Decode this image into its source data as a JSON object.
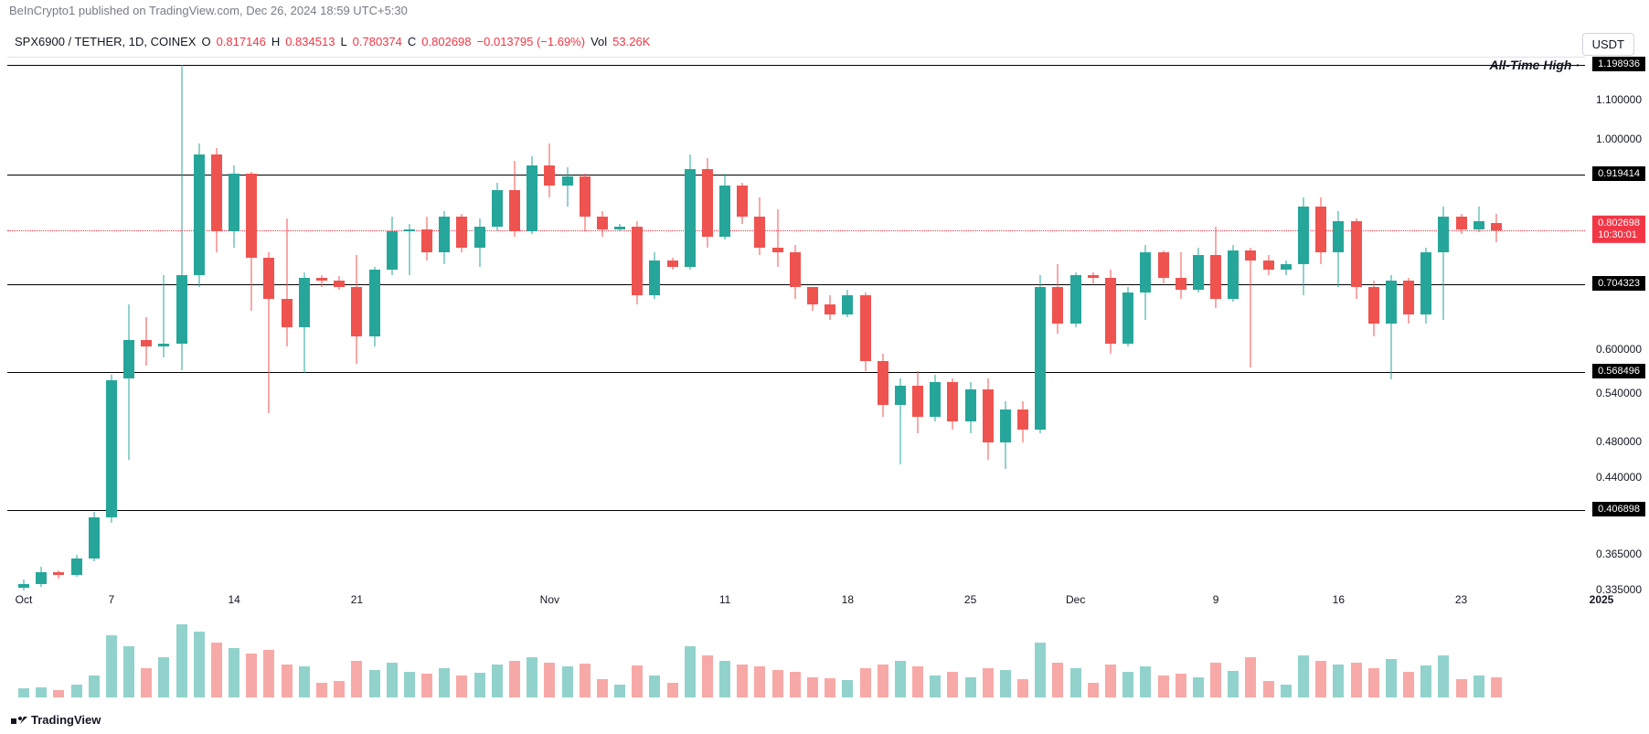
{
  "header": "BeInCrypto1 published on TradingView.com, Dec 26, 2024 18:59 UTC+5:30",
  "legend": {
    "symbol": "SPX6900 / TETHER, 1D, COINEX",
    "o_label": "O",
    "o": "0.817146",
    "h_label": "H",
    "h": "0.834513",
    "l_label": "L",
    "l": "0.780374",
    "c_label": "C",
    "c": "0.802698",
    "chg": "−0.013795 (−1.69%)",
    "vol_label": "Vol",
    "vol": "53.26K"
  },
  "currency_badge": "USDT",
  "tv": "TradingView",
  "chart": {
    "scale": "log",
    "ymin": 0.335,
    "ymax": 1.22,
    "green": "#26a69a",
    "red": "#ef5350",
    "candle_width": 16,
    "hlines": [
      {
        "v": 1.198936,
        "label": "1.198936",
        "ath": true,
        "ath_text": "All-Time High"
      },
      {
        "v": 0.919414,
        "label": "0.919414"
      },
      {
        "v": 0.704323,
        "label": "0.704323"
      },
      {
        "v": 0.568496,
        "label": "0.568496"
      },
      {
        "v": 0.406898,
        "label": "0.406898"
      }
    ],
    "yticks": [
      {
        "v": 1.1,
        "label": "1.100000"
      },
      {
        "v": 1.0,
        "label": "1.000000"
      },
      {
        "v": 0.6,
        "label": "0.600000"
      },
      {
        "v": 0.54,
        "label": "0.540000"
      },
      {
        "v": 0.48,
        "label": "0.480000"
      },
      {
        "v": 0.44,
        "label": "0.440000"
      },
      {
        "v": 0.365,
        "label": "0.365000"
      },
      {
        "v": 0.335,
        "label": "0.335000"
      }
    ],
    "price_line": {
      "v": 0.802698,
      "label": "0.802698",
      "timer": "10:30:01"
    },
    "xlabels": [
      {
        "i": 0,
        "t": "Oct"
      },
      {
        "i": 5,
        "t": "7"
      },
      {
        "i": 12,
        "t": "14"
      },
      {
        "i": 19,
        "t": "21"
      },
      {
        "i": 30,
        "t": "Nov"
      },
      {
        "i": 40,
        "t": "11"
      },
      {
        "i": 47,
        "t": "18"
      },
      {
        "i": 54,
        "t": "25"
      },
      {
        "i": 60,
        "t": "Dec"
      },
      {
        "i": 68,
        "t": "9"
      },
      {
        "i": 75,
        "t": "16"
      },
      {
        "i": 82,
        "t": "23"
      },
      {
        "i": 90,
        "t": "2025",
        "bold": true
      }
    ],
    "candles": [
      {
        "o": 0.337,
        "h": 0.344,
        "l": 0.335,
        "c": 0.34,
        "v": 12
      },
      {
        "o": 0.34,
        "h": 0.355,
        "l": 0.338,
        "c": 0.35,
        "v": 14
      },
      {
        "o": 0.35,
        "h": 0.352,
        "l": 0.345,
        "c": 0.348,
        "v": 10
      },
      {
        "o": 0.348,
        "h": 0.365,
        "l": 0.346,
        "c": 0.362,
        "v": 18
      },
      {
        "o": 0.362,
        "h": 0.405,
        "l": 0.36,
        "c": 0.4,
        "v": 30
      },
      {
        "o": 0.4,
        "h": 0.565,
        "l": 0.395,
        "c": 0.558,
        "v": 85
      },
      {
        "o": 0.56,
        "h": 0.67,
        "l": 0.46,
        "c": 0.615,
        "v": 70
      },
      {
        "o": 0.615,
        "h": 0.65,
        "l": 0.578,
        "c": 0.605,
        "v": 40
      },
      {
        "o": 0.605,
        "h": 0.72,
        "l": 0.59,
        "c": 0.61,
        "v": 55
      },
      {
        "o": 0.61,
        "h": 1.198,
        "l": 0.572,
        "c": 0.72,
        "v": 100
      },
      {
        "o": 0.72,
        "h": 0.99,
        "l": 0.7,
        "c": 0.965,
        "v": 90
      },
      {
        "o": 0.965,
        "h": 0.98,
        "l": 0.76,
        "c": 0.8,
        "v": 75
      },
      {
        "o": 0.8,
        "h": 0.94,
        "l": 0.77,
        "c": 0.92,
        "v": 68
      },
      {
        "o": 0.92,
        "h": 0.925,
        "l": 0.66,
        "c": 0.75,
        "v": 60
      },
      {
        "o": 0.75,
        "h": 0.76,
        "l": 0.515,
        "c": 0.68,
        "v": 65
      },
      {
        "o": 0.68,
        "h": 0.825,
        "l": 0.605,
        "c": 0.635,
        "v": 45
      },
      {
        "o": 0.635,
        "h": 0.725,
        "l": 0.568,
        "c": 0.715,
        "v": 42
      },
      {
        "o": 0.715,
        "h": 0.72,
        "l": 0.7,
        "c": 0.71,
        "v": 20
      },
      {
        "o": 0.71,
        "h": 0.718,
        "l": 0.695,
        "c": 0.7,
        "v": 22
      },
      {
        "o": 0.7,
        "h": 0.755,
        "l": 0.58,
        "c": 0.62,
        "v": 50
      },
      {
        "o": 0.62,
        "h": 0.735,
        "l": 0.605,
        "c": 0.73,
        "v": 38
      },
      {
        "o": 0.73,
        "h": 0.83,
        "l": 0.72,
        "c": 0.8,
        "v": 48
      },
      {
        "o": 0.8,
        "h": 0.815,
        "l": 0.72,
        "c": 0.805,
        "v": 35
      },
      {
        "o": 0.805,
        "h": 0.83,
        "l": 0.745,
        "c": 0.76,
        "v": 32
      },
      {
        "o": 0.76,
        "h": 0.84,
        "l": 0.74,
        "c": 0.83,
        "v": 40
      },
      {
        "o": 0.83,
        "h": 0.835,
        "l": 0.76,
        "c": 0.77,
        "v": 30
      },
      {
        "o": 0.77,
        "h": 0.825,
        "l": 0.735,
        "c": 0.81,
        "v": 34
      },
      {
        "o": 0.81,
        "h": 0.9,
        "l": 0.8,
        "c": 0.885,
        "v": 45
      },
      {
        "o": 0.885,
        "h": 0.95,
        "l": 0.79,
        "c": 0.8,
        "v": 50
      },
      {
        "o": 0.8,
        "h": 0.96,
        "l": 0.795,
        "c": 0.94,
        "v": 55
      },
      {
        "o": 0.94,
        "h": 0.99,
        "l": 0.87,
        "c": 0.895,
        "v": 48
      },
      {
        "o": 0.895,
        "h": 0.935,
        "l": 0.85,
        "c": 0.915,
        "v": 42
      },
      {
        "o": 0.915,
        "h": 0.92,
        "l": 0.8,
        "c": 0.83,
        "v": 46
      },
      {
        "o": 0.83,
        "h": 0.84,
        "l": 0.79,
        "c": 0.805,
        "v": 25
      },
      {
        "o": 0.805,
        "h": 0.815,
        "l": 0.8,
        "c": 0.81,
        "v": 18
      },
      {
        "o": 0.81,
        "h": 0.82,
        "l": 0.67,
        "c": 0.685,
        "v": 44
      },
      {
        "o": 0.685,
        "h": 0.76,
        "l": 0.68,
        "c": 0.745,
        "v": 30
      },
      {
        "o": 0.745,
        "h": 0.75,
        "l": 0.73,
        "c": 0.735,
        "v": 20
      },
      {
        "o": 0.735,
        "h": 0.965,
        "l": 0.73,
        "c": 0.93,
        "v": 70
      },
      {
        "o": 0.93,
        "h": 0.955,
        "l": 0.77,
        "c": 0.79,
        "v": 58
      },
      {
        "o": 0.79,
        "h": 0.92,
        "l": 0.785,
        "c": 0.895,
        "v": 50
      },
      {
        "o": 0.895,
        "h": 0.9,
        "l": 0.815,
        "c": 0.83,
        "v": 45
      },
      {
        "o": 0.83,
        "h": 0.87,
        "l": 0.755,
        "c": 0.77,
        "v": 42
      },
      {
        "o": 0.77,
        "h": 0.845,
        "l": 0.735,
        "c": 0.76,
        "v": 38
      },
      {
        "o": 0.76,
        "h": 0.775,
        "l": 0.68,
        "c": 0.7,
        "v": 35
      },
      {
        "o": 0.7,
        "h": 0.7,
        "l": 0.66,
        "c": 0.67,
        "v": 28
      },
      {
        "o": 0.67,
        "h": 0.685,
        "l": 0.645,
        "c": 0.655,
        "v": 26
      },
      {
        "o": 0.655,
        "h": 0.695,
        "l": 0.65,
        "c": 0.685,
        "v": 24
      },
      {
        "o": 0.685,
        "h": 0.69,
        "l": 0.57,
        "c": 0.585,
        "v": 40
      },
      {
        "o": 0.585,
        "h": 0.595,
        "l": 0.51,
        "c": 0.525,
        "v": 45
      },
      {
        "o": 0.525,
        "h": 0.56,
        "l": 0.455,
        "c": 0.55,
        "v": 50
      },
      {
        "o": 0.55,
        "h": 0.57,
        "l": 0.49,
        "c": 0.51,
        "v": 42
      },
      {
        "o": 0.51,
        "h": 0.565,
        "l": 0.505,
        "c": 0.555,
        "v": 30
      },
      {
        "o": 0.555,
        "h": 0.56,
        "l": 0.495,
        "c": 0.505,
        "v": 35
      },
      {
        "o": 0.505,
        "h": 0.555,
        "l": 0.49,
        "c": 0.545,
        "v": 28
      },
      {
        "o": 0.545,
        "h": 0.56,
        "l": 0.46,
        "c": 0.48,
        "v": 40
      },
      {
        "o": 0.48,
        "h": 0.53,
        "l": 0.45,
        "c": 0.52,
        "v": 38
      },
      {
        "o": 0.52,
        "h": 0.53,
        "l": 0.48,
        "c": 0.495,
        "v": 25
      },
      {
        "o": 0.495,
        "h": 0.72,
        "l": 0.49,
        "c": 0.7,
        "v": 75
      },
      {
        "o": 0.7,
        "h": 0.74,
        "l": 0.625,
        "c": 0.64,
        "v": 48
      },
      {
        "o": 0.64,
        "h": 0.725,
        "l": 0.635,
        "c": 0.72,
        "v": 40
      },
      {
        "o": 0.72,
        "h": 0.725,
        "l": 0.705,
        "c": 0.715,
        "v": 20
      },
      {
        "o": 0.715,
        "h": 0.73,
        "l": 0.595,
        "c": 0.61,
        "v": 45
      },
      {
        "o": 0.61,
        "h": 0.7,
        "l": 0.605,
        "c": 0.69,
        "v": 35
      },
      {
        "o": 0.69,
        "h": 0.775,
        "l": 0.645,
        "c": 0.76,
        "v": 42
      },
      {
        "o": 0.76,
        "h": 0.765,
        "l": 0.705,
        "c": 0.715,
        "v": 30
      },
      {
        "o": 0.715,
        "h": 0.76,
        "l": 0.68,
        "c": 0.695,
        "v": 32
      },
      {
        "o": 0.695,
        "h": 0.77,
        "l": 0.69,
        "c": 0.755,
        "v": 28
      },
      {
        "o": 0.755,
        "h": 0.81,
        "l": 0.665,
        "c": 0.68,
        "v": 48
      },
      {
        "o": 0.68,
        "h": 0.775,
        "l": 0.675,
        "c": 0.765,
        "v": 36
      },
      {
        "o": 0.765,
        "h": 0.77,
        "l": 0.575,
        "c": 0.745,
        "v": 55
      },
      {
        "o": 0.745,
        "h": 0.755,
        "l": 0.72,
        "c": 0.73,
        "v": 22
      },
      {
        "o": 0.73,
        "h": 0.745,
        "l": 0.72,
        "c": 0.74,
        "v": 18
      },
      {
        "o": 0.74,
        "h": 0.87,
        "l": 0.685,
        "c": 0.85,
        "v": 58
      },
      {
        "o": 0.85,
        "h": 0.87,
        "l": 0.74,
        "c": 0.76,
        "v": 50
      },
      {
        "o": 0.76,
        "h": 0.84,
        "l": 0.7,
        "c": 0.82,
        "v": 45
      },
      {
        "o": 0.82,
        "h": 0.825,
        "l": 0.68,
        "c": 0.7,
        "v": 48
      },
      {
        "o": 0.7,
        "h": 0.71,
        "l": 0.62,
        "c": 0.64,
        "v": 40
      },
      {
        "o": 0.64,
        "h": 0.72,
        "l": 0.559,
        "c": 0.71,
        "v": 52
      },
      {
        "o": 0.71,
        "h": 0.715,
        "l": 0.64,
        "c": 0.655,
        "v": 35
      },
      {
        "o": 0.655,
        "h": 0.77,
        "l": 0.64,
        "c": 0.76,
        "v": 44
      },
      {
        "o": 0.76,
        "h": 0.85,
        "l": 0.645,
        "c": 0.83,
        "v": 58
      },
      {
        "o": 0.83,
        "h": 0.835,
        "l": 0.795,
        "c": 0.805,
        "v": 25
      },
      {
        "o": 0.805,
        "h": 0.85,
        "l": 0.798,
        "c": 0.82,
        "v": 30
      },
      {
        "o": 0.817,
        "h": 0.8345,
        "l": 0.7804,
        "c": 0.8027,
        "v": 27
      }
    ]
  }
}
